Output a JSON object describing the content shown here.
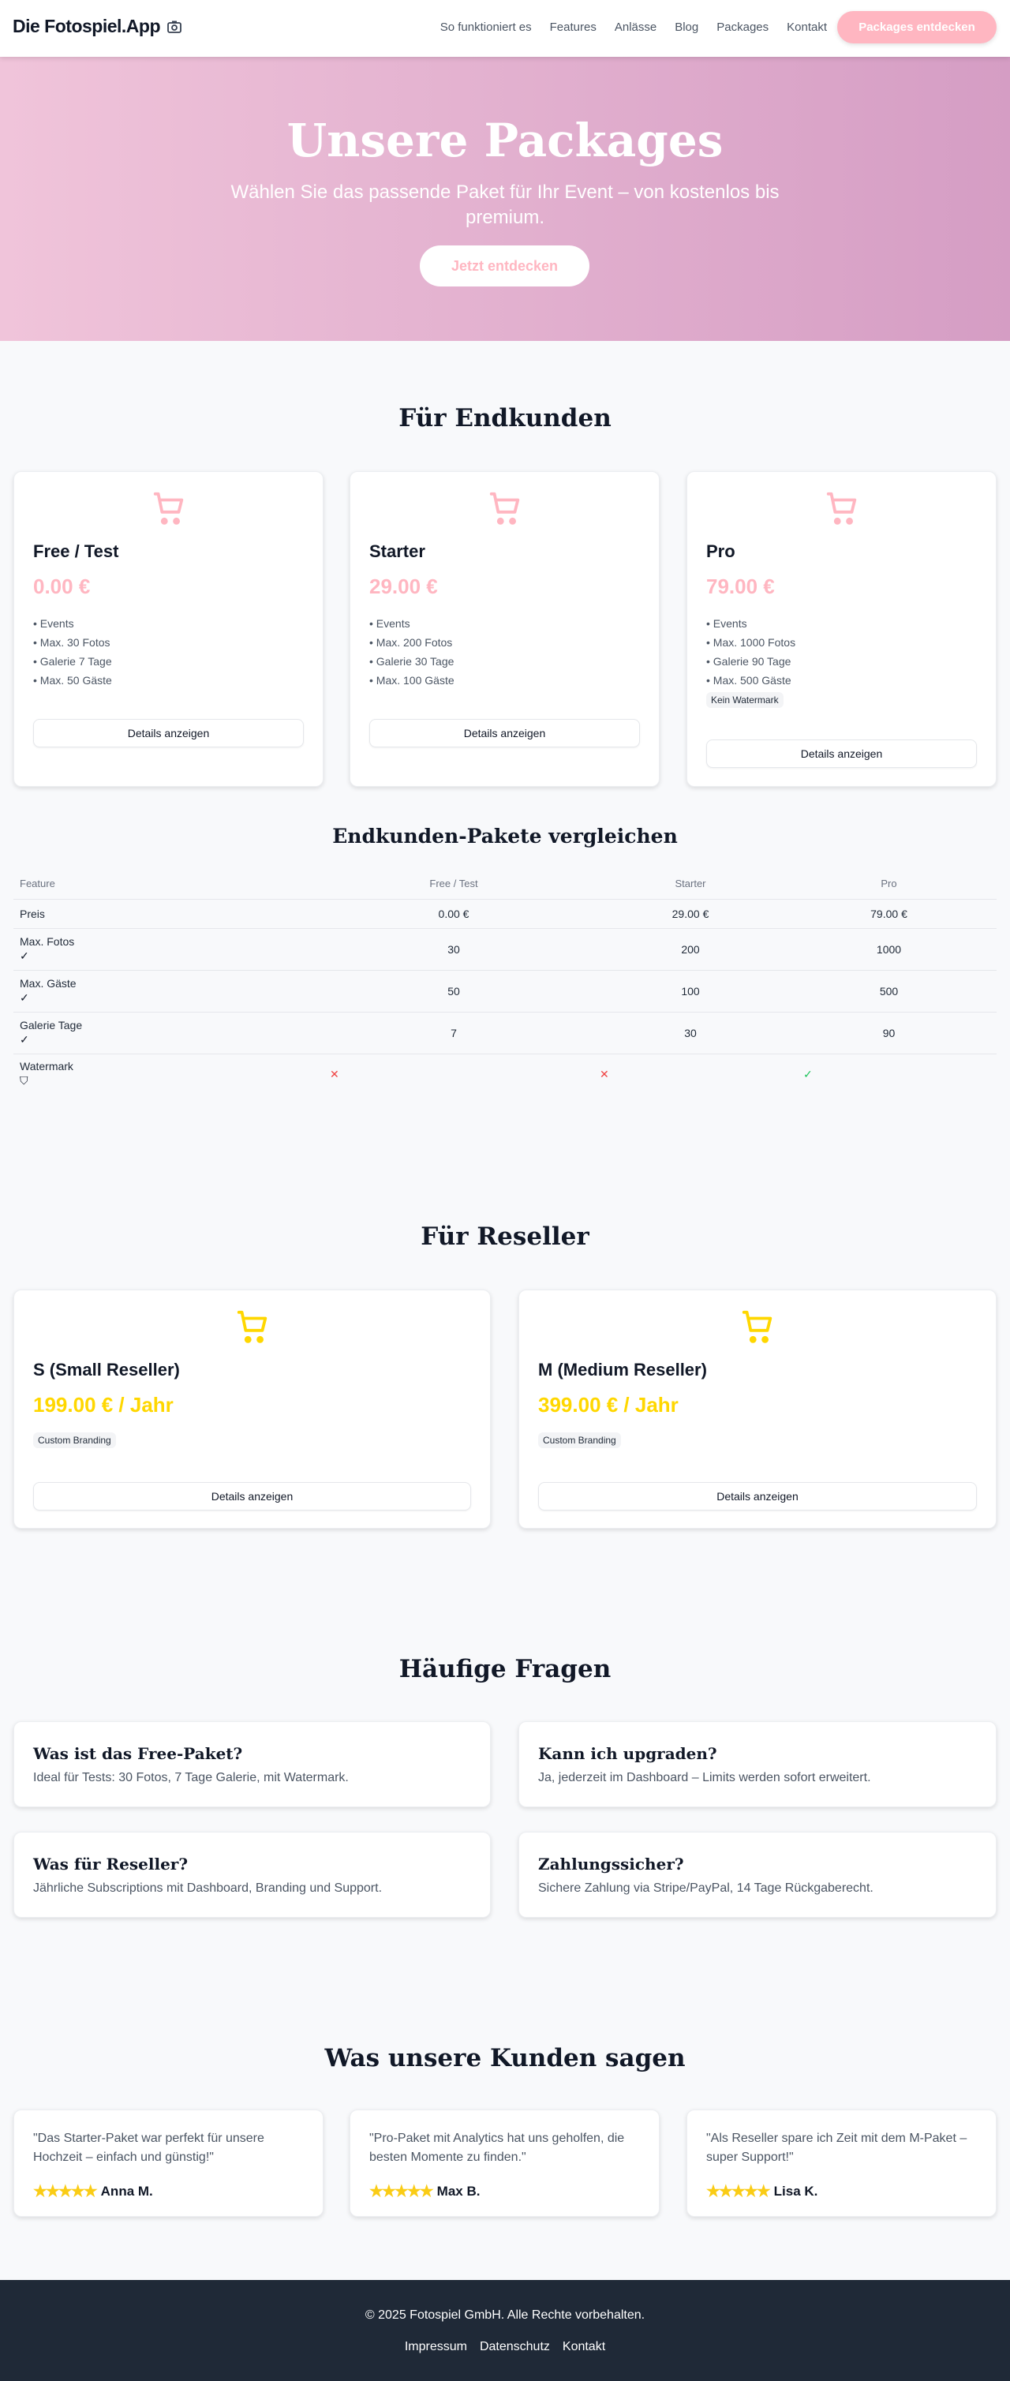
{
  "header": {
    "logo": "Die Fotospiel.App",
    "nav": [
      "So funktioniert es",
      "Features",
      "Anlässe",
      "Blog",
      "Packages",
      "Kontakt"
    ],
    "cta": "Packages entdecken"
  },
  "hero": {
    "title": "Unsere Packages",
    "subtitle": "Wählen Sie das passende Paket für Ihr Event – von kostenlos bis premium.",
    "button": "Jetzt entdecken"
  },
  "colors": {
    "pink": "#ffb6c1",
    "yellow": "#ffd700",
    "footer": "#1f2937"
  },
  "endkunden": {
    "heading": "Für Endkunden",
    "details": "Details anzeigen",
    "packages": [
      {
        "name": "Free / Test",
        "price": "0.00 €",
        "features": [
          "Events",
          "Max. 30 Fotos",
          "Galerie 7 Tage",
          "Max. 50 Gäste"
        ]
      },
      {
        "name": "Starter",
        "price": "29.00 €",
        "features": [
          "Events",
          "Max. 200 Fotos",
          "Galerie 30 Tage",
          "Max. 100 Gäste"
        ]
      },
      {
        "name": "Pro",
        "price": "79.00 €",
        "features": [
          "Events",
          "Max. 1000 Fotos",
          "Galerie 90 Tage",
          "Max. 500 Gäste"
        ],
        "badge": "Kein Watermark"
      }
    ]
  },
  "compare": {
    "heading": "Endkunden-Pakete vergleichen",
    "columns": [
      "Feature",
      "Free / Test",
      "Starter",
      "Pro"
    ],
    "rows": [
      {
        "label": "Preis",
        "values": [
          "0.00 €",
          "29.00 €",
          "79.00 €"
        ]
      },
      {
        "label": "Max. Fotos",
        "values": [
          "30",
          "200",
          "1000"
        ]
      },
      {
        "label": "Max. Gäste",
        "values": [
          "50",
          "100",
          "500"
        ]
      },
      {
        "label": "Galerie Tage",
        "values": [
          "7",
          "30",
          "90"
        ]
      },
      {
        "label": "Watermark",
        "values": [
          false,
          false,
          true
        ]
      }
    ]
  },
  "reseller": {
    "heading": "Für Reseller",
    "details": "Details anzeigen",
    "packages": [
      {
        "name": "S (Small Reseller)",
        "price": "199.00 € / Jahr",
        "badge": "Custom Branding"
      },
      {
        "name": "M (Medium Reseller)",
        "price": "399.00 € / Jahr",
        "badge": "Custom Branding"
      }
    ]
  },
  "faq": {
    "heading": "Häufige Fragen",
    "items": [
      {
        "q": "Was ist das Free-Paket?",
        "a": "Ideal für Tests: 30 Fotos, 7 Tage Galerie, mit Watermark."
      },
      {
        "q": "Kann ich upgraden?",
        "a": "Ja, jederzeit im Dashboard – Limits werden sofort erweitert."
      },
      {
        "q": "Was für Reseller?",
        "a": "Jährliche Subscriptions mit Dashboard, Branding und Support."
      },
      {
        "q": "Zahlungssicher?",
        "a": "Sichere Zahlung via Stripe/PayPal, 14 Tage Rückgaberecht."
      }
    ]
  },
  "testimonials": {
    "heading": "Was unsere Kunden sagen",
    "items": [
      {
        "text": "\"Das Starter-Paket war perfekt für unsere Hochzeit – einfach und günstig!\"",
        "name": "Anna M.",
        "rating": 5
      },
      {
        "text": "\"Pro-Paket mit Analytics hat uns geholfen, die besten Momente zu finden.\"",
        "name": "Max B.",
        "rating": 5
      },
      {
        "text": "\"Als Reseller spare ich Zeit mit dem M-Paket – super Support!\"",
        "name": "Lisa K.",
        "rating": 5
      }
    ]
  },
  "footer": {
    "copyright": "© 2025 Fotospiel GmbH. Alle Rechte vorbehalten.",
    "links": [
      "Impressum",
      "Datenschutz",
      "Kontakt"
    ]
  }
}
